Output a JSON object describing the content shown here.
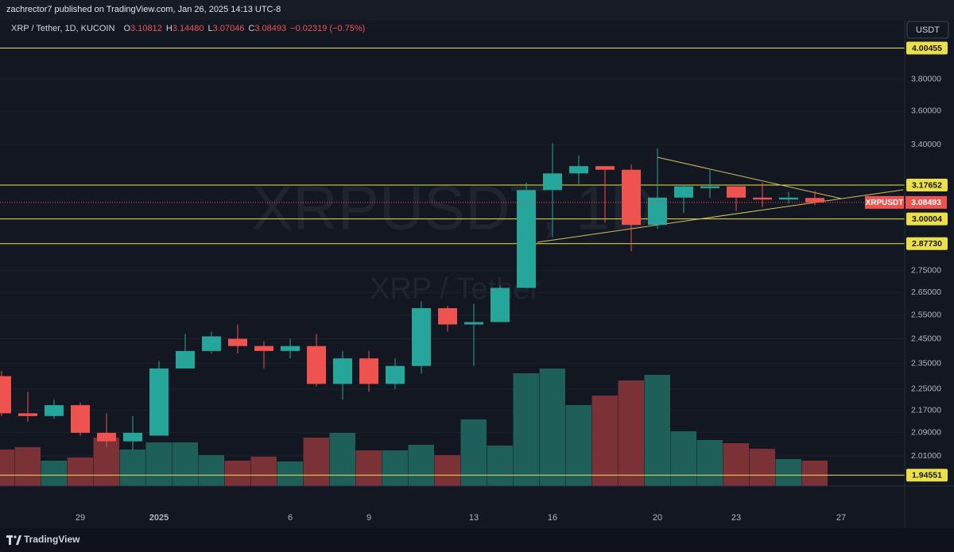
{
  "header": {
    "published": "zachrector7 published on TradingView.com, Jan 26, 2025 14:13 UTC-8"
  },
  "chart_data": {
    "type": "candlestick",
    "title": "XRP / Tether, 1D, KUCOIN",
    "ohlc_legend": [
      {
        "key": "O",
        "value": "3.10812"
      },
      {
        "key": "H",
        "value": "3.14480"
      },
      {
        "key": "L",
        "value": "3.07046"
      },
      {
        "key": "C",
        "value": "3.08493"
      }
    ],
    "change": "−0.02319 (−0.75%)",
    "watermark": "XRPUSDT, 1D",
    "watermark_subtitle": "XRP / Tether",
    "currency": "USDT",
    "categories": [
      null,
      null,
      null,
      "29",
      null,
      null,
      "2025",
      null,
      null,
      null,
      null,
      "6",
      null,
      null,
      "9",
      null,
      null,
      null,
      "13",
      null,
      null,
      "16",
      null,
      null,
      null,
      "20",
      null,
      null,
      "23",
      null,
      null,
      null,
      "27"
    ],
    "open": [
      2.3,
      2.16,
      2.15,
      2.19,
      2.09,
      2.06,
      2.08,
      2.33,
      2.4,
      2.45,
      2.42,
      2.4,
      2.42,
      2.27,
      2.37,
      2.27,
      2.34,
      2.58,
      2.51,
      2.52,
      2.67,
      3.15,
      3.24,
      3.28,
      3.26,
      2.97,
      3.11,
      3.16,
      3.17,
      3.11,
      3.1,
      3.10812,
      null
    ],
    "high": [
      2.32,
      2.24,
      2.21,
      2.2,
      2.16,
      2.15,
      2.36,
      2.47,
      2.48,
      2.51,
      2.44,
      2.45,
      2.47,
      2.4,
      2.4,
      2.37,
      2.61,
      2.59,
      2.6,
      2.68,
      3.19,
      3.41,
      3.34,
      3.28,
      3.29,
      3.38,
      3.18,
      3.26,
      3.17,
      3.19,
      3.14,
      3.1448,
      null
    ],
    "low": [
      2.15,
      2.13,
      2.14,
      2.08,
      2.04,
      2.03,
      2.08,
      2.33,
      2.39,
      2.39,
      2.33,
      2.37,
      2.26,
      2.21,
      2.24,
      2.25,
      2.31,
      2.48,
      2.34,
      2.52,
      2.67,
      2.91,
      3.18,
      2.98,
      2.84,
      2.95,
      3.03,
      3.11,
      3.04,
      3.06,
      3.08,
      3.07046,
      null
    ],
    "close": [
      2.16,
      2.15,
      2.19,
      2.09,
      2.06,
      2.09,
      2.33,
      2.4,
      2.46,
      2.42,
      2.4,
      2.42,
      2.27,
      2.37,
      2.27,
      2.34,
      2.58,
      2.51,
      2.52,
      2.67,
      3.15,
      3.24,
      3.28,
      3.26,
      2.97,
      3.11,
      3.17,
      3.17,
      3.11,
      3.1,
      3.11,
      3.08493,
      null
    ],
    "volume": [
      46,
      49,
      32,
      36,
      61,
      46,
      55,
      55,
      39,
      32,
      37,
      31,
      61,
      67,
      45,
      45,
      52,
      39,
      84,
      51,
      142,
      148,
      102,
      114,
      133,
      140,
      69,
      58,
      54,
      47,
      34,
      32,
      null
    ],
    "up_color": "#26a69a",
    "down_color": "#ef5350",
    "volume_up_color": "#1f5f5a",
    "volume_down_color": "#7a3236",
    "log_scale": true,
    "ylim": [
      1.91,
      4.2
    ],
    "yticks": [
      {
        "value": 3.8,
        "label": "3.80000"
      },
      {
        "value": 3.6,
        "label": "3.60000"
      },
      {
        "value": 3.4,
        "label": "3.40000"
      },
      {
        "value": 2.75,
        "label": "2.75000"
      },
      {
        "value": 2.65,
        "label": "2.65000"
      },
      {
        "value": 2.55,
        "label": "2.55000"
      },
      {
        "value": 2.45,
        "label": "2.45000"
      },
      {
        "value": 2.35,
        "label": "2.35000"
      },
      {
        "value": 2.25,
        "label": "2.25000"
      },
      {
        "value": 2.17,
        "label": "2.17000"
      },
      {
        "value": 2.09,
        "label": "2.09000"
      },
      {
        "value": 2.01,
        "label": "2.01000"
      }
    ],
    "grid": true,
    "levels": [
      {
        "value": 4.00455,
        "label": "4.00455"
      },
      {
        "value": 3.17652,
        "label": "3.17652"
      },
      {
        "value": 3.00004,
        "label": "3.00004"
      },
      {
        "value": 2.8773,
        "label": "2.87730"
      },
      {
        "value": 1.94551,
        "label": "1.94551"
      }
    ],
    "level_color": "#ebe04a",
    "last_price": {
      "name": "XRPUSDT",
      "value": 3.08493
    }
  },
  "footer": {
    "brand": "TradingView"
  }
}
